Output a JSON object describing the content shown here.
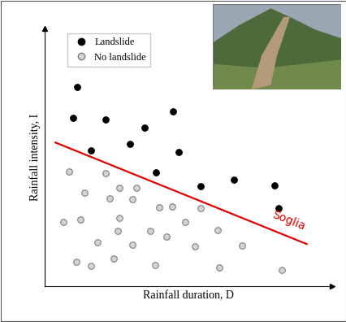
{
  "chart_data": {
    "type": "scatter",
    "x_label": "Rainfall duration, D",
    "y_label": "Rainfall intensity, I",
    "xlim": [
      0,
      100
    ],
    "ylim": [
      0,
      100
    ],
    "tick_labels": false,
    "legend": "upper left",
    "series": [
      {
        "name": "Landslide",
        "type": "scatter",
        "color": "#000000",
        "marker": "o",
        "x": [
          11.3,
          9.9,
          21.1,
          16.1,
          34.6,
          29.6,
          44.5,
          46.5,
          38.6,
          54.1,
          65.6,
          79.7,
          81.1
        ],
        "y": [
          77.3,
          65.3,
          64.7,
          52.7,
          61.5,
          55.2,
          67.8,
          52.1,
          44.2,
          38.8,
          41.3,
          39.1,
          30.3
        ]
      },
      {
        "name": "No landslide",
        "type": "scatter",
        "color": "#d3d3d3",
        "marker": "o",
        "x": [
          8.5,
          21.1,
          13.8,
          22.5,
          25.9,
          31.8,
          30.4,
          6.5,
          12.4,
          25.9,
          39.7,
          44.2,
          54.1,
          25.4,
          36.6,
          48.7,
          18.3,
          30.4,
          42.3,
          60.0,
          11.0,
          16.1,
          23.9,
          38.3,
          52.1,
          68.5,
          60.6,
          82.3
        ],
        "y": [
          44.5,
          43.8,
          36.3,
          34.1,
          38.2,
          38.2,
          33.8,
          24.9,
          25.9,
          26.5,
          30.6,
          30.9,
          30.3,
          21.5,
          21.5,
          24.9,
          17.0,
          16.1,
          19.2,
          21.8,
          9.5,
          7.9,
          10.7,
          8.2,
          15.5,
          15.8,
          7.3,
          6.3
        ]
      },
      {
        "type": "line",
        "color": "#e00000",
        "line_style": "solid",
        "x": [
          3.7,
          91.0
        ],
        "y": [
          55.8,
          16.4
        ]
      }
    ],
    "annotations": [
      {
        "text": "Soglia",
        "x": 78.5,
        "y": 26.0,
        "color": "#e00000"
      }
    ]
  }
}
